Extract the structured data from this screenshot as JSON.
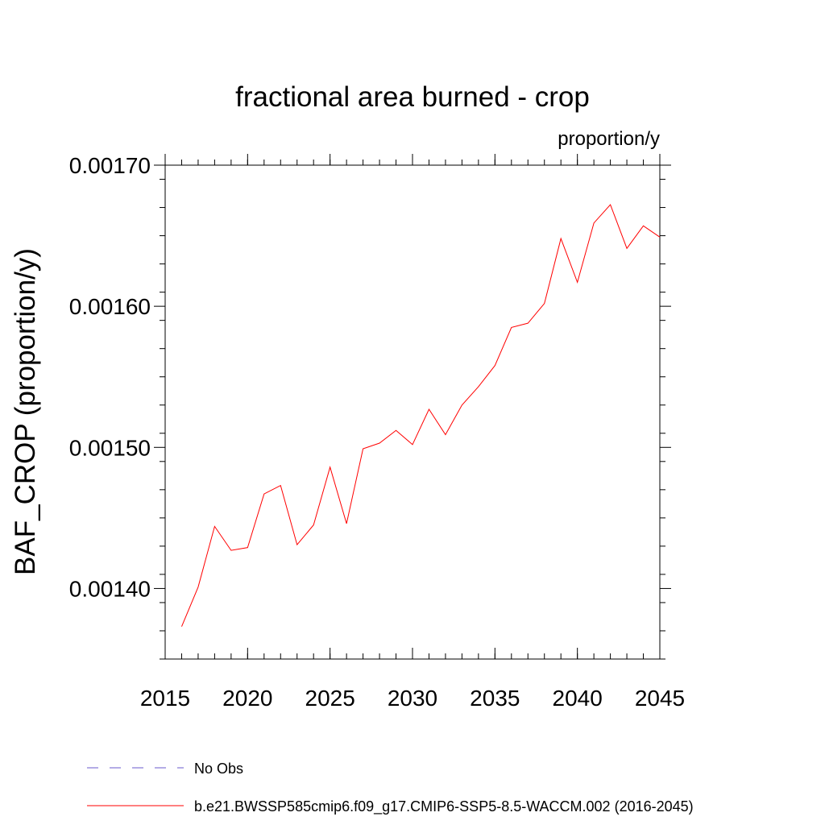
{
  "chart_data": {
    "type": "line",
    "title": "fractional area burned - crop",
    "units": "proportion/y",
    "xlabel": "",
    "ylabel": "BAF_CROP  (proportion/y)",
    "xlim": [
      2015,
      2045
    ],
    "ylim": [
      0.00135,
      0.0017
    ],
    "x_major_ticks": [
      2015,
      2020,
      2025,
      2030,
      2035,
      2040,
      2045
    ],
    "x_minor_step": 1,
    "y_major_ticks": [
      0.0014,
      0.0015,
      0.0016,
      0.0017
    ],
    "y_tick_labels": [
      "0.00140",
      "0.00150",
      "0.00160",
      "0.00170"
    ],
    "y_minor_step": 2e-05,
    "grid": false,
    "legend_position": "bottom",
    "series": [
      {
        "name": "No Obs",
        "color": "#6a5acd",
        "dash": "dashed",
        "x": [],
        "values": []
      },
      {
        "name": "b.e21.BWSSP585cmip6.f09_g17.CMIP6-SSP5-8.5-WACCM.002 (2016-2045)",
        "color": "#ff0000",
        "dash": "solid",
        "x": [
          2016,
          2017,
          2018,
          2019,
          2020,
          2021,
          2022,
          2023,
          2024,
          2025,
          2026,
          2027,
          2028,
          2029,
          2030,
          2031,
          2032,
          2033,
          2034,
          2035,
          2036,
          2037,
          2038,
          2039,
          2040,
          2041,
          2042,
          2043,
          2044,
          2045
        ],
        "values": [
          0.001373,
          0.001401,
          0.001444,
          0.001427,
          0.001429,
          0.001467,
          0.001473,
          0.001431,
          0.001445,
          0.001486,
          0.001446,
          0.001499,
          0.001503,
          0.001512,
          0.001502,
          0.001527,
          0.001509,
          0.00153,
          0.001543,
          0.001558,
          0.001585,
          0.001588,
          0.001602,
          0.001648,
          0.001617,
          0.001659,
          0.001672,
          0.001641,
          0.001657,
          0.001649
        ]
      }
    ]
  }
}
